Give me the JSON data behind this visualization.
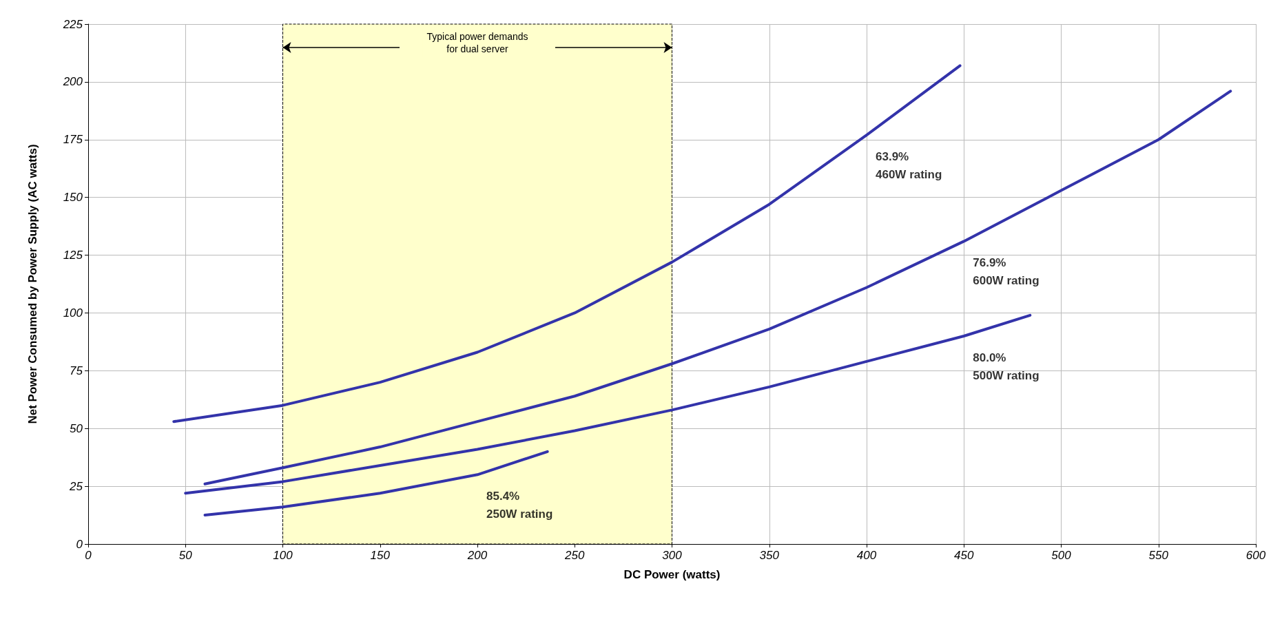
{
  "chart_data": {
    "type": "line",
    "xlabel": "DC Power (watts)",
    "ylabel": "Net Power Consumed by Power Supply (AC watts)",
    "xlim": [
      0,
      600
    ],
    "xticks": [
      0,
      50,
      100,
      150,
      200,
      250,
      300,
      350,
      400,
      450,
      500,
      550,
      600
    ],
    "ylim": [
      0,
      225
    ],
    "yticks": [
      0,
      25,
      50,
      75,
      100,
      125,
      150,
      175,
      200,
      225
    ],
    "grid": true,
    "marker": "none",
    "line_style": "solid",
    "series": [
      {
        "color": "#3333aa",
        "x": [
          44,
          100,
          150,
          200,
          250,
          300,
          350,
          400,
          448
        ],
        "values": [
          53,
          60,
          70,
          83,
          100,
          122,
          147,
          177,
          207
        ]
      },
      {
        "color": "#3333aa",
        "x": [
          60,
          100,
          150,
          200,
          250,
          300,
          350,
          400,
          450,
          500,
          550,
          587
        ],
        "values": [
          26,
          33,
          42,
          53,
          64,
          78,
          93,
          111,
          131,
          153,
          175,
          196
        ]
      },
      {
        "color": "#3333aa",
        "x": [
          50,
          100,
          150,
          200,
          250,
          300,
          350,
          400,
          450,
          484
        ],
        "values": [
          22,
          27,
          34,
          41,
          49,
          58,
          68,
          79,
          90,
          99
        ]
      },
      {
        "color": "#3333aa",
        "x": [
          60,
          100,
          150,
          200,
          236
        ],
        "values": [
          12.5,
          16,
          22,
          30,
          40
        ]
      }
    ],
    "bands": [
      {
        "axis": "x",
        "from": 100,
        "to": 300,
        "label": "Typical power demands\nfor dual server",
        "color": "#ffffcc"
      }
    ],
    "annotations": [
      {
        "text": "63.9%\n460W rating",
        "x": 400,
        "y": 177
      },
      {
        "text": "76.9%\n600W rating",
        "x": 450,
        "y": 131
      },
      {
        "text": "80.0%\n500W rating",
        "x": 450,
        "y": 90
      },
      {
        "text": "85.4%\n250W rating",
        "x": 200,
        "y": 30
      }
    ]
  }
}
